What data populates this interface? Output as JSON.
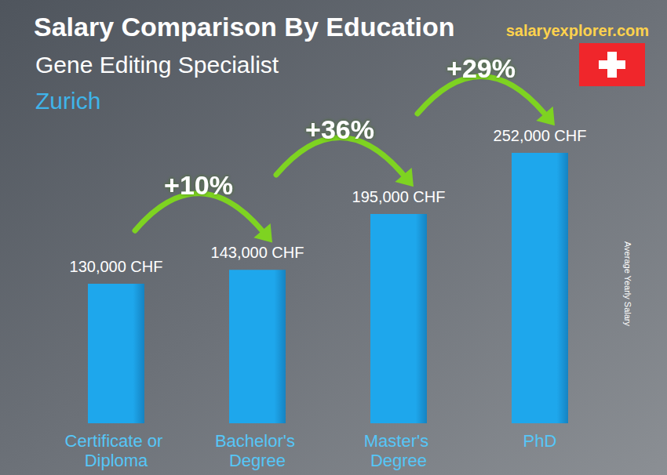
{
  "chart_data": {
    "type": "bar",
    "title": "Salary Comparison By Education",
    "subtitle": "Gene Editing Specialist",
    "location": "Zurich",
    "source": "salaryexplorer.com",
    "y_label": "Average Yearly Salary",
    "categories": [
      "Certificate or Diploma",
      "Bachelor's Degree",
      "Master's Degree",
      "PhD"
    ],
    "values": [
      130000,
      143000,
      195000,
      252000
    ],
    "value_labels": [
      "130,000 CHF",
      "143,000 CHF",
      "195,000 CHF",
      "252,000 CHF"
    ],
    "increases": [
      {
        "label": "+10%",
        "from": "Certificate or Diploma",
        "to": "Bachelor's Degree"
      },
      {
        "label": "+36%",
        "from": "Bachelor's Degree",
        "to": "Master's Degree"
      },
      {
        "label": "+29%",
        "from": "Master's Degree",
        "to": "PhD"
      }
    ],
    "color": "#1ea7ec",
    "ylim": [
      0,
      260000
    ],
    "grid": false,
    "data_labels": true,
    "tick_labels": "x"
  }
}
